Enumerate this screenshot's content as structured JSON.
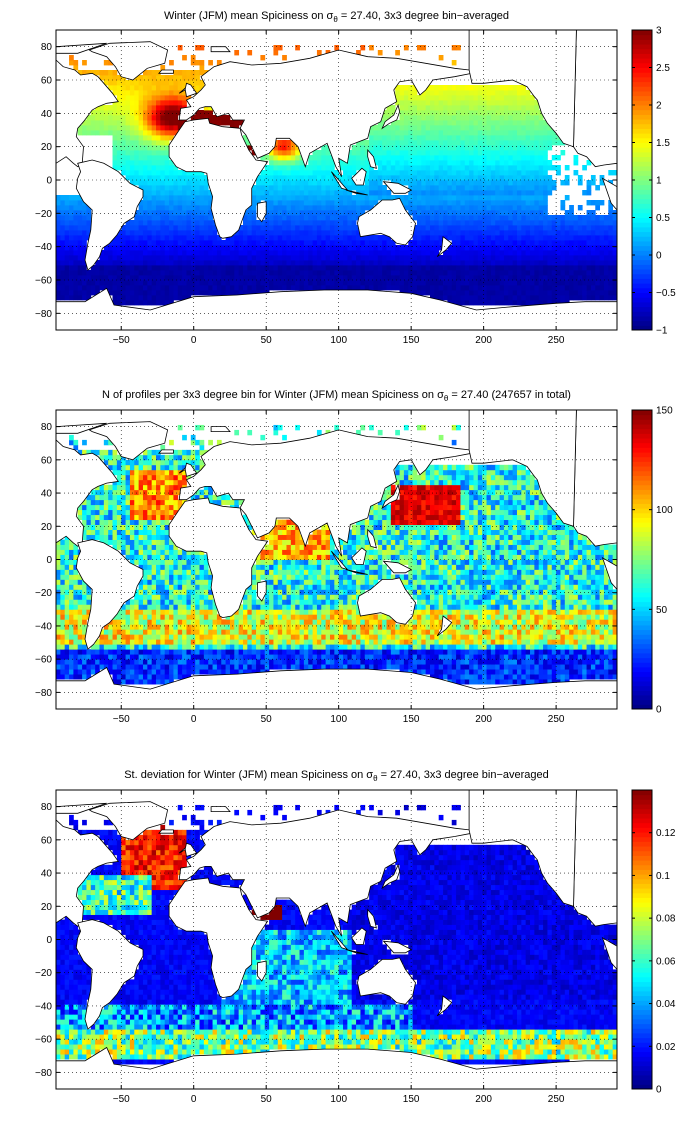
{
  "figure": {
    "background": "#ffffff",
    "land_color": "#ffffff",
    "coast_color": "#000000"
  },
  "chart_data": [
    {
      "type": "heatmap",
      "title_pre": "Winter (JFM) mean Spiciness on σ",
      "title_sub": "θ",
      "title_post": " = 27.40, 3x3 degree bin−averaged",
      "xlim": [
        -95,
        292
      ],
      "ylim": [
        -90,
        90
      ],
      "x_ticks": [
        -50,
        0,
        50,
        100,
        150,
        200,
        250
      ],
      "y_ticks": [
        -80,
        -60,
        -40,
        -20,
        0,
        20,
        40,
        60,
        80
      ],
      "x_tick_labels": [
        "−50",
        "0",
        "50",
        "100",
        "150",
        "200",
        "250"
      ],
      "y_tick_labels": [
        "−80",
        "−60",
        "−40",
        "−20",
        "0",
        "20",
        "40",
        "60",
        "80"
      ],
      "grid": "dotted",
      "colormap": "jet",
      "clim": [
        -1,
        3
      ],
      "colorbar_ticks": [
        -1,
        -0.5,
        0,
        0.5,
        1,
        1.5,
        2,
        2.5,
        3
      ],
      "colorbar_labels": [
        "−1",
        "−0.5",
        "0",
        "0.5",
        "1",
        "1.5",
        "2",
        "2.5",
        "3"
      ],
      "field": "spice",
      "bin_deg": 3
    },
    {
      "type": "heatmap",
      "title_pre": "N of profiles per 3x3 degree bin for Winter (JFM) mean Spiciness on σ",
      "title_sub": "θ",
      "title_post": " = 27.40 (247657 in total)",
      "xlim": [
        -95,
        292
      ],
      "ylim": [
        -90,
        90
      ],
      "x_ticks": [
        -50,
        0,
        50,
        100,
        150,
        200,
        250
      ],
      "y_ticks": [
        -80,
        -60,
        -40,
        -20,
        0,
        20,
        40,
        60,
        80
      ],
      "x_tick_labels": [
        "−50",
        "0",
        "50",
        "100",
        "150",
        "200",
        "250"
      ],
      "y_tick_labels": [
        "−80",
        "−60",
        "−40",
        "−20",
        "0",
        "20",
        "40",
        "60",
        "80"
      ],
      "grid": "dotted",
      "colormap": "jet",
      "clim": [
        0,
        150
      ],
      "colorbar_ticks": [
        0,
        50,
        100,
        150
      ],
      "colorbar_labels": [
        "0",
        "50",
        "100",
        "150"
      ],
      "field": "count",
      "bin_deg": 3
    },
    {
      "type": "heatmap",
      "title_pre": "St. deviation for Winter (JFM) mean Spiciness on σ",
      "title_sub": "θ",
      "title_post": " = 27.40, 3x3 degree bin−averaged",
      "xlim": [
        -95,
        292
      ],
      "ylim": [
        -90,
        90
      ],
      "x_ticks": [
        -50,
        0,
        50,
        100,
        150,
        200,
        250
      ],
      "y_ticks": [
        -80,
        -60,
        -40,
        -20,
        0,
        20,
        40,
        60,
        80
      ],
      "x_tick_labels": [
        "−50",
        "0",
        "50",
        "100",
        "150",
        "200",
        "250"
      ],
      "y_tick_labels": [
        "−80",
        "−60",
        "−40",
        "−20",
        "0",
        "20",
        "40",
        "60",
        "80"
      ],
      "grid": "dotted",
      "colormap": "jet",
      "clim": [
        0,
        0.14
      ],
      "colorbar_ticks": [
        0,
        0.02,
        0.04,
        0.06,
        0.08,
        0.1,
        0.12
      ],
      "colorbar_labels": [
        "0",
        "0.02",
        "0.04",
        "0.06",
        "0.08",
        "0.1",
        "0.12"
      ],
      "field": "std",
      "bin_deg": 3
    }
  ]
}
